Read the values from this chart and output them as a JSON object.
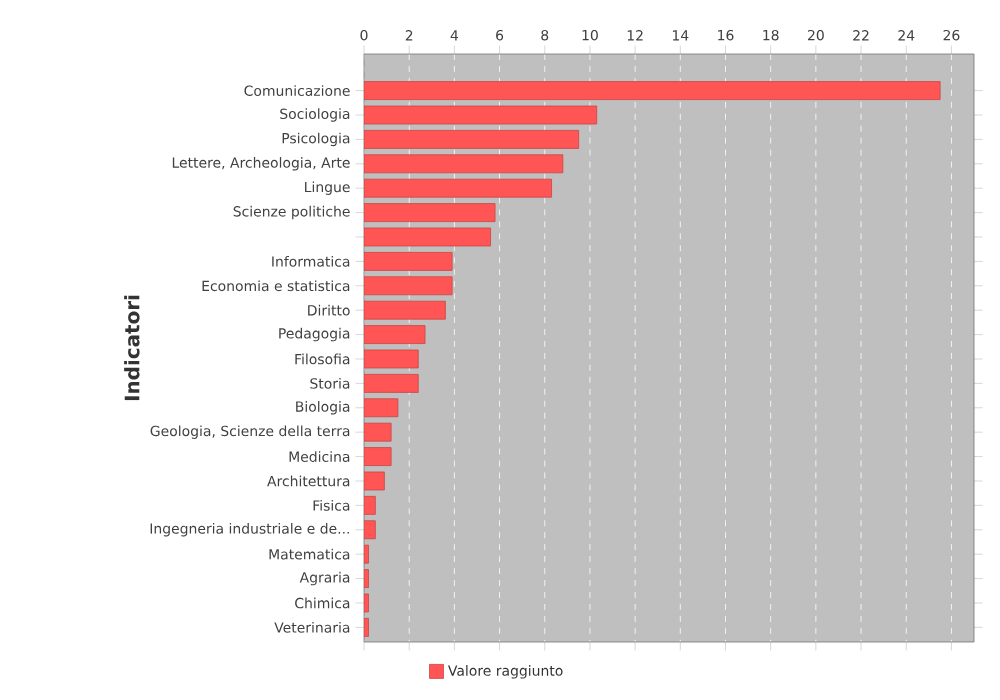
{
  "chart_data": {
    "type": "bar",
    "orientation": "horizontal",
    "ylabel": "Indicatori",
    "legend": "bottom",
    "grid": "x",
    "categories": [
      "Comunicazione",
      "Sociologia",
      "Psicologia",
      "Lettere, Archeologia, Arte",
      "Lingue",
      "Scienze politiche",
      null,
      "Informatica",
      "Economia e statistica",
      "Diritto",
      "Pedagogia",
      "Filosofia",
      "Storia",
      "Biologia",
      "Geologia, Scienze della terra",
      "Medicina",
      "Architettura",
      "Fisica",
      "Ingegneria industriale e de...",
      "Matematica",
      "Agraria",
      "Chimica",
      "Veterinaria"
    ],
    "series": [
      {
        "name": "Valore raggiunto",
        "color": "#ff5555",
        "values": [
          25.5,
          10.3,
          9.5,
          8.8,
          8.3,
          5.8,
          5.6,
          3.9,
          3.9,
          3.6,
          2.7,
          2.4,
          2.4,
          1.5,
          1.2,
          1.2,
          0.9,
          0.5,
          0.5,
          0.2,
          0.2,
          0.2,
          0.2
        ]
      }
    ],
    "xlim": [
      0,
      27
    ],
    "xticks": [
      0,
      2,
      4,
      6,
      8,
      10,
      12,
      14,
      16,
      18,
      20,
      22,
      24,
      26
    ]
  }
}
